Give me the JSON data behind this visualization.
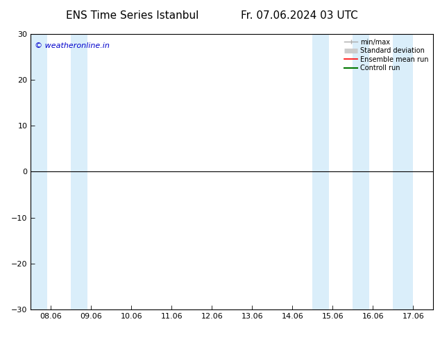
{
  "title_left": "ENS Time Series Istanbul",
  "title_right": "Fr. 07.06.2024 03 UTC",
  "ylim": [
    -30,
    30
  ],
  "yticks": [
    -30,
    -20,
    -10,
    0,
    10,
    20,
    30
  ],
  "xtick_labels": [
    "08.06",
    "09.06",
    "10.06",
    "11.06",
    "12.06",
    "13.06",
    "14.06",
    "15.06",
    "16.06",
    "17.06"
  ],
  "xtick_positions": [
    0,
    1,
    2,
    3,
    4,
    5,
    6,
    7,
    8,
    9
  ],
  "shaded_bands": [
    [
      0,
      0.4
    ],
    [
      1,
      1.4
    ],
    [
      7,
      7.4
    ],
    [
      8,
      8.4
    ],
    [
      9,
      9.5
    ]
  ],
  "shade_color": "#daeefa",
  "background_color": "#ffffff",
  "watermark": "© weatheronline.in",
  "watermark_color": "#0000cc",
  "legend_items": [
    {
      "label": "min/max",
      "color": "#aaaaaa",
      "lw": 1
    },
    {
      "label": "Standard deviation",
      "color": "#cccccc",
      "lw": 5
    },
    {
      "label": "Ensemble mean run",
      "color": "#ff0000",
      "lw": 1.2
    },
    {
      "label": "Controll run",
      "color": "#007700",
      "lw": 1.5
    }
  ],
  "zero_line_color": "#000000",
  "border_color": "#000000",
  "tick_color": "#000000",
  "title_fontsize": 11,
  "axis_fontsize": 8,
  "figsize": [
    6.34,
    4.9
  ],
  "dpi": 100
}
